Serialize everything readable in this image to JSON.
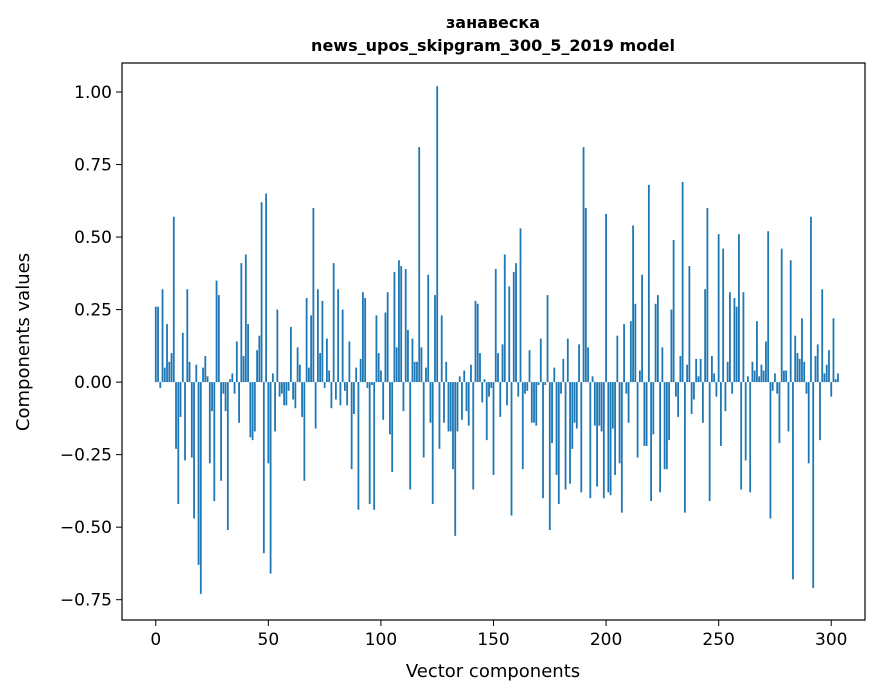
{
  "chart_data": {
    "type": "bar",
    "title": "занавеска",
    "subtitle": "news_upos_skipgram_300_5_2019 model",
    "xlabel": "Vector components",
    "ylabel": "Components values",
    "xlim": [
      -15,
      315
    ],
    "ylim": [
      -0.82,
      1.1
    ],
    "xticks": [
      0,
      50,
      100,
      150,
      200,
      250,
      300
    ],
    "yticks": [
      -0.75,
      -0.5,
      -0.25,
      0.0,
      0.25,
      0.5,
      0.75,
      1.0
    ],
    "ytick_labels": [
      "−0.75",
      "−0.50",
      "−0.25",
      "0.00",
      "0.25",
      "0.50",
      "0.75",
      "1.00"
    ],
    "grid": false,
    "legend": "none",
    "bar_color": "#1f77b4",
    "values": [
      0.26,
      0.26,
      -0.02,
      0.32,
      0.05,
      0.2,
      0.07,
      0.1,
      0.57,
      -0.23,
      -0.42,
      -0.12,
      0.17,
      -0.27,
      0.32,
      0.07,
      -0.26,
      -0.47,
      0.06,
      -0.63,
      -0.73,
      0.05,
      0.09,
      0.02,
      -0.28,
      -0.1,
      -0.41,
      0.35,
      0.3,
      -0.34,
      -0.04,
      -0.1,
      -0.51,
      0.01,
      0.03,
      -0.04,
      0.14,
      -0.14,
      0.41,
      0.09,
      0.44,
      0.2,
      -0.19,
      -0.2,
      -0.17,
      0.11,
      0.16,
      0.62,
      -0.59,
      0.65,
      -0.28,
      -0.66,
      0.03,
      -0.17,
      0.25,
      -0.05,
      -0.04,
      -0.08,
      -0.08,
      -0.03,
      0.19,
      -0.06,
      -0.09,
      0.12,
      0.06,
      -0.12,
      -0.34,
      0.29,
      0.05,
      0.23,
      0.6,
      -0.16,
      0.32,
      0.1,
      0.28,
      -0.02,
      0.15,
      0.04,
      -0.09,
      0.41,
      -0.06,
      0.32,
      -0.08,
      0.25,
      -0.03,
      -0.08,
      0.14,
      -0.3,
      -0.11,
      0.05,
      -0.44,
      0.08,
      0.31,
      0.29,
      -0.02,
      -0.42,
      -0.01,
      -0.44,
      0.23,
      0.1,
      0.04,
      -0.13,
      0.24,
      0.31,
      -0.18,
      -0.31,
      0.38,
      0.12,
      0.42,
      0.4,
      -0.1,
      0.39,
      0.18,
      -0.37,
      0.15,
      0.07,
      0.07,
      0.81,
      0.12,
      -0.26,
      0.05,
      0.37,
      -0.14,
      -0.42,
      0.3,
      1.02,
      -0.23,
      0.23,
      -0.14,
      0.07,
      -0.17,
      -0.17,
      -0.3,
      -0.53,
      -0.17,
      0.02,
      -0.13,
      0.04,
      -0.1,
      -0.15,
      0.06,
      -0.37,
      0.28,
      0.27,
      0.1,
      -0.07,
      0.01,
      -0.2,
      -0.05,
      -0.02,
      -0.32,
      0.39,
      0.1,
      -0.12,
      0.13,
      0.44,
      -0.08,
      0.33,
      -0.46,
      0.38,
      0.41,
      -0.05,
      0.53,
      -0.3,
      -0.04,
      -0.03,
      0.11,
      -0.14,
      -0.14,
      -0.15,
      -0.01,
      0.15,
      -0.4,
      -0.01,
      0.3,
      -0.51,
      -0.21,
      0.05,
      -0.32,
      -0.42,
      -0.04,
      0.08,
      -0.37,
      0.15,
      -0.35,
      -0.23,
      -0.14,
      -0.16,
      0.13,
      -0.38,
      0.81,
      0.6,
      0.12,
      -0.4,
      0.02,
      -0.15,
      -0.36,
      -0.15,
      -0.17,
      -0.4,
      0.58,
      -0.38,
      -0.39,
      -0.16,
      -0.32,
      0.16,
      -0.28,
      -0.45,
      0.2,
      -0.04,
      -0.14,
      0.21,
      0.54,
      0.27,
      -0.26,
      0.04,
      0.37,
      -0.22,
      -0.22,
      0.68,
      -0.41,
      -0.18,
      0.27,
      0.3,
      -0.38,
      0.12,
      -0.3,
      -0.3,
      -0.2,
      0.25,
      0.49,
      -0.05,
      -0.12,
      0.09,
      0.69,
      -0.45,
      0.06,
      0.4,
      -0.11,
      -0.06,
      0.08,
      0.02,
      0.08,
      -0.14,
      0.32,
      0.6,
      -0.41,
      0.09,
      0.03,
      -0.05,
      0.51,
      -0.22,
      0.46,
      -0.1,
      0.07,
      0.31,
      -0.04,
      0.29,
      0.26,
      0.51,
      -0.37,
      0.31,
      -0.27,
      0.02,
      -0.38,
      0.07,
      0.04,
      0.21,
      0.02,
      0.06,
      0.04,
      0.14,
      0.52,
      -0.47,
      -0.03,
      0.03,
      -0.04,
      -0.21,
      0.46,
      0.04,
      0.04,
      -0.17,
      0.42,
      -0.68,
      0.16,
      0.1,
      0.08,
      0.22,
      0.07,
      -0.04,
      -0.28,
      0.57,
      -0.71,
      0.09,
      0.13,
      -0.2,
      0.32,
      0.03,
      0.06,
      0.11,
      -0.05,
      0.22,
      0.01,
      0.03,
      0.0,
      0.0,
      0.0
    ]
  }
}
